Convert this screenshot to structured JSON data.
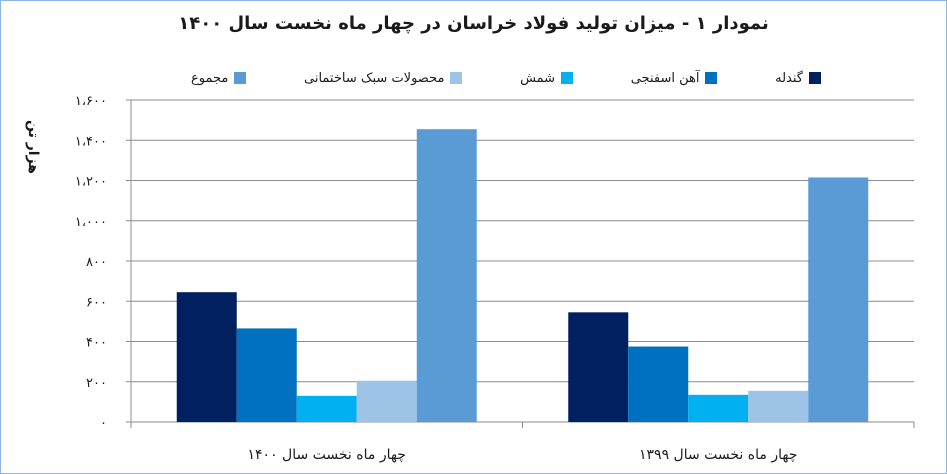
{
  "chart_data": {
    "type": "bar",
    "title": "نمودار ۱ - میزان تولید فولاد خراسان در چهار ماه نخست سال ۱۴۰۰",
    "ylabel": "هزار تن",
    "xlabel": "",
    "ylim": [
      0,
      1600
    ],
    "yticks": [
      0,
      200,
      400,
      600,
      800,
      1000,
      1200,
      1400,
      1600
    ],
    "ytick_labels": [
      "۰",
      "۲۰۰",
      "۴۰۰",
      "۶۰۰",
      "۸۰۰",
      "۱،۰۰۰",
      "۱،۲۰۰",
      "۱،۴۰۰",
      "۱،۶۰۰"
    ],
    "grid": true,
    "legend_position": "top",
    "categories": [
      "چهار ماه نخست سال ۱۴۰۰",
      "چهار ماه نخست سال ۱۳۹۹"
    ],
    "series": [
      {
        "name": "گندله",
        "color": "#002060",
        "values": [
          645,
          545
        ]
      },
      {
        "name": "آهن اسفنجی",
        "color": "#0070c0",
        "values": [
          465,
          375
        ]
      },
      {
        "name": "شمش",
        "color": "#00b0f0",
        "values": [
          130,
          135
        ]
      },
      {
        "name": "محصولات سبک ساختمانی",
        "color": "#9dc3e6",
        "values": [
          205,
          155
        ]
      },
      {
        "name": "مجموع",
        "color": "#5b9bd5",
        "values": [
          1455,
          1215
        ]
      }
    ]
  }
}
